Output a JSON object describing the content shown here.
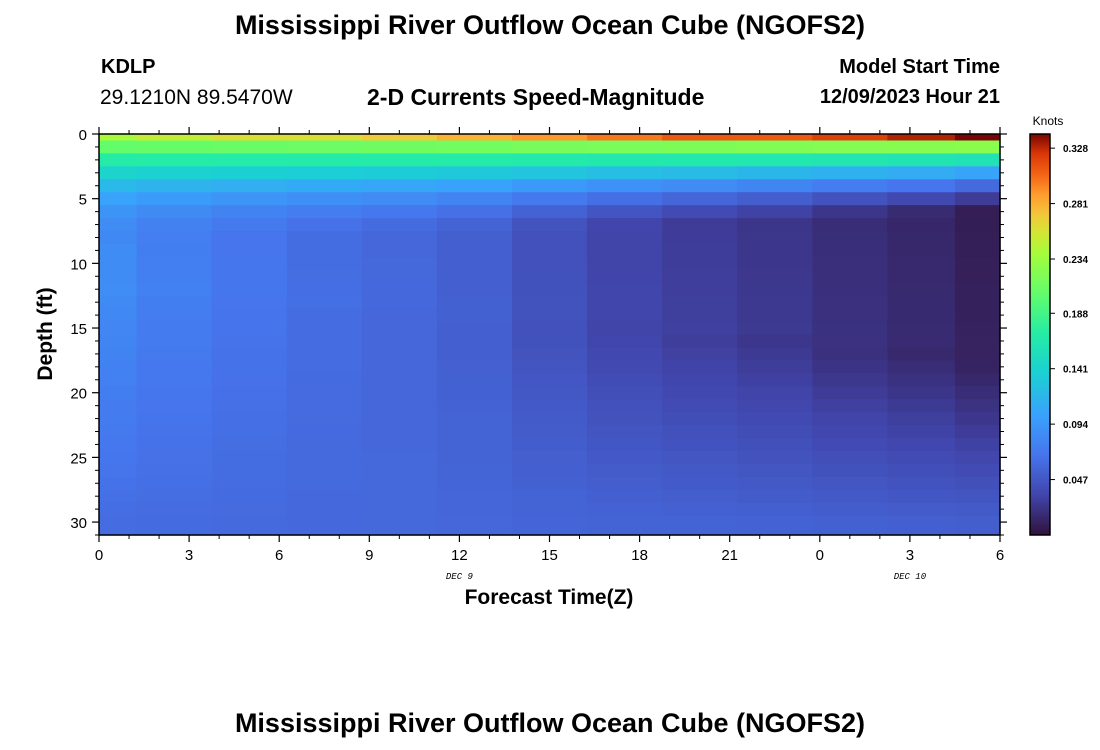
{
  "header": {
    "title": "Mississippi River Outflow Ocean Cube (NGOFS2)",
    "station_id": "KDLP",
    "station_coords": "29.1210N  89.5470W",
    "plot_title": "2-D Currents Speed-Magnitude",
    "model_start_label": "Model Start Time",
    "model_start_time": "12/09/2023 Hour 21"
  },
  "footer": {
    "title": "Mississippi River Outflow Ocean Cube (NGOFS2)"
  },
  "chart_data": {
    "type": "heatmap",
    "title": "2-D Currents Speed-Magnitude",
    "xlabel": "Forecast Time(Z)",
    "ylabel": "Depth (ft)",
    "x_ticks": [
      "0",
      "3",
      "6",
      "9",
      "12",
      "15",
      "18",
      "21",
      "0",
      "3",
      "6"
    ],
    "x_range": [
      0,
      30
    ],
    "date_labels": [
      {
        "text": "DEC 9",
        "hour": 12
      },
      {
        "text": "DEC 10",
        "hour": 27
      }
    ],
    "y_ticks": [
      "0",
      "5",
      "10",
      "15",
      "20",
      "25",
      "30"
    ],
    "y_range": [
      0,
      31
    ],
    "y_reversed": true,
    "colorbar": {
      "label": "Knots",
      "ticks": [
        "0.328",
        "0.281",
        "0.234",
        "0.188",
        "0.141",
        "0.094",
        "0.047"
      ],
      "min": 0.0,
      "max": 0.34
    },
    "time_steps_hours": [
      0,
      2.5,
      5,
      7.5,
      10,
      12.5,
      15,
      17.5,
      20,
      22.5,
      25,
      27.5,
      29.5
    ],
    "depth_levels_ft": [
      0,
      1,
      2,
      3,
      4,
      5,
      6,
      7,
      8,
      9,
      10,
      11,
      12,
      13,
      14,
      15,
      16,
      17,
      18,
      19,
      20,
      21,
      22,
      23,
      24,
      25,
      26,
      27,
      28,
      29,
      30
    ],
    "surface_speed_knots": [
      0.24,
      0.25,
      0.26,
      0.26,
      0.27,
      0.28,
      0.29,
      0.3,
      0.31,
      0.31,
      0.32,
      0.33,
      0.34
    ],
    "deep_min_speed_knots": [
      0.085,
      0.075,
      0.068,
      0.062,
      0.058,
      0.052,
      0.042,
      0.033,
      0.028,
      0.024,
      0.018,
      0.014,
      0.008
    ]
  }
}
